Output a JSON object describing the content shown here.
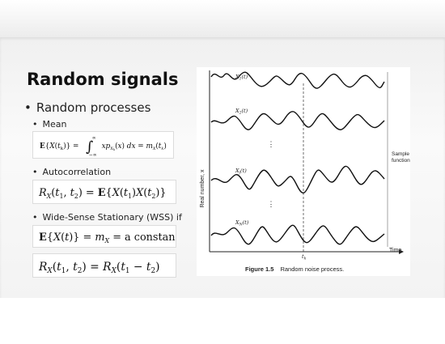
{
  "slide": {
    "title": "Random signals",
    "bullets": {
      "random_processes": "Random processes",
      "mean": "Mean",
      "autocorrelation": "Autocorrelation",
      "wss": "Wide-Sense Stationary (WSS) if"
    },
    "equations": {
      "mean_lhs": "E{X(t",
      "mean_rhs": "xp",
      "mean_full": "E{X(t_k)} = ∫ x p_{X_k}(x) dx = m_X(t_k)",
      "autocorr_lhs": "R",
      "autocorr_full": "R_X(t1, t2) = E{X(t1)X(t2)}",
      "wss_mean_full": "E{X(t)} = m_X = a constant",
      "wss_autocorr_full": "R_X(t1, t2) = R_X(t1 − t2)"
    }
  },
  "figure": {
    "ylabel": "Real number, x",
    "xlabel": "Time",
    "sample_functions_label_line1": "Sample",
    "sample_functions_label_line2": "functions",
    "tk_label": "t",
    "tk_sub": "k",
    "caption_number": "Figure 1.5",
    "caption_text": "Random noise process.",
    "signal_labels": [
      "X",
      "X",
      "X",
      "X"
    ],
    "signal_subs": [
      "1",
      "2",
      "j",
      "N"
    ]
  }
}
